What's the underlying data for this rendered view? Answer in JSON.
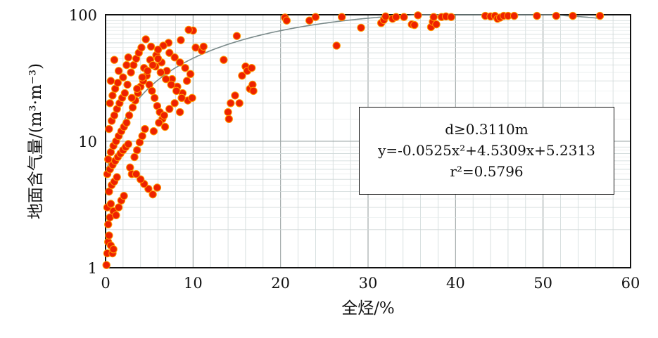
{
  "chart_data": {
    "type": "scatter",
    "xlabel": "全烃/%",
    "ylabel": "地面含气量/(m³·m⁻³)",
    "xlim": [
      0,
      60
    ],
    "ylim": [
      1,
      100
    ],
    "yscale": "log",
    "xticks": [
      "0",
      "10",
      "20",
      "30",
      "40",
      "50",
      "60"
    ],
    "yticks": [
      "1",
      "10",
      "100"
    ],
    "grid": true,
    "marker_color": "#ee2200",
    "marker_edge": "#ff9900",
    "fit_color": "#7a8a8a",
    "annotation": {
      "condition": "d≥0.3110m",
      "equation": "y=-0.0525x²+4.5309x+5.2313",
      "r2": "r²=0.5796"
    },
    "fit": {
      "a": -0.0525,
      "b": 4.5309,
      "c": 5.2313
    },
    "points": [
      [
        0.1,
        1.05
      ],
      [
        0.2,
        1.3
      ],
      [
        0.3,
        1.6
      ],
      [
        0.4,
        1.8
      ],
      [
        0.6,
        1.5
      ],
      [
        0.8,
        1.3
      ],
      [
        0.9,
        1.4
      ],
      [
        0.3,
        2.2
      ],
      [
        0.5,
        2.5
      ],
      [
        0.2,
        3.0
      ],
      [
        0.6,
        3.2
      ],
      [
        0.9,
        2.8
      ],
      [
        1.2,
        2.6
      ],
      [
        1.5,
        3.0
      ],
      [
        1.8,
        3.4
      ],
      [
        2.1,
        3.7
      ],
      [
        0.4,
        4.0
      ],
      [
        0.7,
        4.5
      ],
      [
        1.0,
        4.8
      ],
      [
        1.3,
        5.2
      ],
      [
        0.2,
        5.5
      ],
      [
        0.5,
        6.0
      ],
      [
        0.8,
        6.5
      ],
      [
        1.1,
        7.0
      ],
      [
        1.4,
        7.5
      ],
      [
        1.7,
        8.0
      ],
      [
        2.0,
        8.5
      ],
      [
        2.3,
        9.0
      ],
      [
        2.6,
        9.5
      ],
      [
        0.3,
        7.2
      ],
      [
        0.6,
        8.2
      ],
      [
        0.9,
        9.2
      ],
      [
        1.2,
        10.0
      ],
      [
        1.5,
        11.0
      ],
      [
        1.8,
        12.0
      ],
      [
        2.1,
        13.0
      ],
      [
        2.4,
        14.0
      ],
      [
        0.4,
        12.5
      ],
      [
        0.7,
        14.5
      ],
      [
        1.0,
        16.0
      ],
      [
        1.3,
        18.0
      ],
      [
        1.6,
        20.0
      ],
      [
        1.9,
        22.0
      ],
      [
        2.2,
        24.0
      ],
      [
        0.5,
        20.0
      ],
      [
        0.8,
        23.0
      ],
      [
        1.1,
        26.0
      ],
      [
        1.4,
        29.0
      ],
      [
        0.6,
        30.0
      ],
      [
        1.0,
        44.0
      ],
      [
        1.5,
        36.0
      ],
      [
        2.0,
        32.0
      ],
      [
        2.5,
        28.0
      ],
      [
        2.8,
        6.2
      ],
      [
        3.0,
        5.5
      ],
      [
        3.3,
        7.5
      ],
      [
        3.6,
        8.5
      ],
      [
        3.9,
        9.8
      ],
      [
        4.2,
        11.0
      ],
      [
        4.5,
        12.5
      ],
      [
        2.7,
        16.0
      ],
      [
        3.1,
        18.5
      ],
      [
        3.4,
        21.0
      ],
      [
        3.7,
        24.0
      ],
      [
        4.0,
        27.0
      ],
      [
        4.3,
        30.0
      ],
      [
        2.9,
        35.0
      ],
      [
        3.2,
        40.0
      ],
      [
        3.5,
        45.0
      ],
      [
        3.8,
        50.0
      ],
      [
        4.1,
        55.0
      ],
      [
        4.4,
        38.0
      ],
      [
        4.7,
        33.0
      ],
      [
        5.0,
        28.0
      ],
      [
        5.3,
        25.0
      ],
      [
        5.6,
        22.0
      ],
      [
        5.9,
        19.0
      ],
      [
        6.2,
        17.0
      ],
      [
        6.5,
        15.0
      ],
      [
        6.8,
        13.0
      ],
      [
        4.6,
        64.0
      ],
      [
        5.2,
        56.0
      ],
      [
        5.8,
        48.0
      ],
      [
        6.4,
        42.0
      ],
      [
        7.0,
        36.0
      ],
      [
        7.6,
        31.0
      ],
      [
        8.2,
        27.0
      ],
      [
        8.8,
        24.0
      ],
      [
        9.4,
        21.0
      ],
      [
        5.1,
        44.0
      ],
      [
        5.7,
        39.0
      ],
      [
        6.3,
        35.0
      ],
      [
        6.9,
        31.0
      ],
      [
        7.5,
        28.0
      ],
      [
        8.1,
        25.0
      ],
      [
        8.7,
        22.0
      ],
      [
        9.3,
        30.0
      ],
      [
        9.9,
        22.0
      ],
      [
        7.3,
        50.0
      ],
      [
        7.9,
        46.0
      ],
      [
        8.5,
        42.0
      ],
      [
        9.1,
        38.0
      ],
      [
        9.7,
        34.0
      ],
      [
        10.0,
        75.0
      ],
      [
        9.5,
        76.0
      ],
      [
        8.6,
        63.0
      ],
      [
        7.2,
        60.0
      ],
      [
        6.6,
        57.0
      ],
      [
        6.0,
        53.0
      ],
      [
        10.3,
        55.0
      ],
      [
        4.9,
        4.2
      ],
      [
        5.4,
        3.8
      ],
      [
        5.9,
        4.3
      ],
      [
        4.4,
        4.6
      ],
      [
        4.0,
        5.0
      ],
      [
        3.5,
        5.5
      ],
      [
        5.5,
        12.0
      ],
      [
        6.1,
        14.0
      ],
      [
        6.7,
        16.0
      ],
      [
        7.3,
        18.0
      ],
      [
        7.9,
        20.0
      ],
      [
        8.5,
        17.0
      ],
      [
        3.0,
        22.0
      ],
      [
        3.6,
        26.0
      ],
      [
        4.2,
        32.0
      ],
      [
        4.8,
        36.0
      ],
      [
        5.4,
        40.0
      ],
      [
        6.0,
        45.0
      ],
      [
        2.4,
        40.0
      ],
      [
        2.6,
        46.0
      ],
      [
        11.0,
        52.0
      ],
      [
        11.2,
        56.0
      ],
      [
        13.5,
        44.0
      ],
      [
        14.0,
        17.0
      ],
      [
        14.1,
        15.0
      ],
      [
        14.3,
        20.0
      ],
      [
        14.8,
        23.0
      ],
      [
        15.0,
        68.0
      ],
      [
        15.3,
        20.0
      ],
      [
        15.6,
        33.0
      ],
      [
        16.0,
        39.0
      ],
      [
        16.2,
        36.0
      ],
      [
        16.5,
        26.0
      ],
      [
        16.8,
        28.0
      ],
      [
        16.9,
        25.0
      ],
      [
        16.7,
        38.0
      ],
      [
        20.5,
        95.0
      ],
      [
        20.7,
        90.0
      ],
      [
        23.3,
        90.0
      ],
      [
        24.0,
        96.0
      ],
      [
        26.4,
        57.0
      ],
      [
        27.0,
        96.0
      ],
      [
        29.2,
        79.0
      ],
      [
        31.5,
        86.0
      ],
      [
        31.8,
        91.0
      ],
      [
        32.0,
        97.0
      ],
      [
        32.8,
        93.0
      ],
      [
        33.2,
        96.0
      ],
      [
        34.1,
        96.0
      ],
      [
        35.0,
        84.0
      ],
      [
        35.3,
        83.0
      ],
      [
        35.7,
        99.0
      ],
      [
        37.2,
        80.0
      ],
      [
        37.4,
        88.0
      ],
      [
        37.5,
        96.0
      ],
      [
        37.8,
        84.0
      ],
      [
        38.4,
        96.0
      ],
      [
        38.9,
        97.0
      ],
      [
        39.5,
        96.0
      ],
      [
        43.4,
        98.0
      ],
      [
        44.0,
        97.0
      ],
      [
        44.5,
        98.0
      ],
      [
        44.8,
        93.0
      ],
      [
        45.1,
        95.0
      ],
      [
        45.5,
        98.0
      ],
      [
        46.0,
        98.0
      ],
      [
        46.7,
        98.0
      ],
      [
        49.3,
        98.0
      ],
      [
        51.5,
        98.0
      ],
      [
        53.4,
        98.0
      ],
      [
        56.5,
        98.0
      ]
    ]
  }
}
